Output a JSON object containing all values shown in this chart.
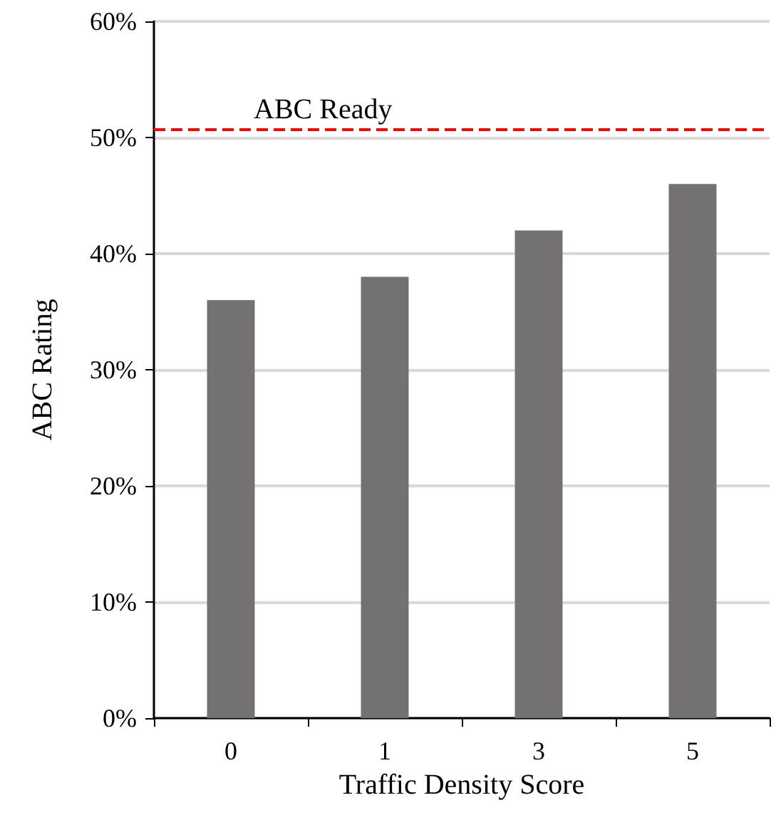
{
  "chart_data": {
    "type": "bar",
    "xlabel": "Traffic Density Score",
    "ylabel": "ABC Rating",
    "categories": [
      "0",
      "1",
      "3",
      "5"
    ],
    "series": [
      {
        "color": "#767171",
        "values": [
          36,
          38,
          42,
          46
        ]
      }
    ],
    "ylim": [
      0,
      60
    ],
    "yticks": [
      {
        "value": 0,
        "label": "0%"
      },
      {
        "value": 10,
        "label": "10%"
      },
      {
        "value": 20,
        "label": "20%"
      },
      {
        "value": 30,
        "label": "30%"
      },
      {
        "value": 40,
        "label": "40%"
      },
      {
        "value": 50,
        "label": "50%"
      },
      {
        "value": 60,
        "label": "60%"
      }
    ],
    "grid": "y",
    "ref_lines": [
      {
        "axis": "y",
        "value": 50.7,
        "label": "ABC Ready",
        "color": "#ff0000",
        "line_style": "dashed"
      }
    ]
  }
}
